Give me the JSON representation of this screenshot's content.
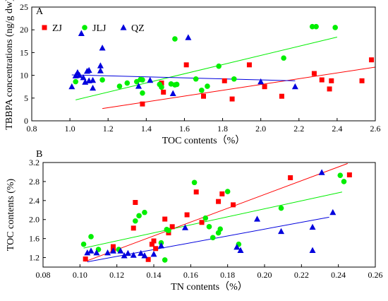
{
  "chart_data": [
    {
      "type": "scatter",
      "panel_label": "A",
      "xlabel": "TOC contents（%）",
      "ylabel": "TBBPA concentrations (ng/g dw)",
      "xlim": [
        0.8,
        2.6
      ],
      "ylim": [
        0,
        25
      ],
      "xticks": [
        "0.8",
        "1.0",
        "1.2",
        "1.4",
        "1.6",
        "1.8",
        "2.0",
        "2.2",
        "2.4",
        "2.6"
      ],
      "yticks": [
        "0",
        "5",
        "10",
        "15",
        "20",
        "25"
      ],
      "legend_position": "top-left",
      "series": [
        {
          "name": "ZJ",
          "marker": "square",
          "color": "#ff0000",
          "points": [
            [
              1.38,
              3.7
            ],
            [
              1.49,
              6.3
            ],
            [
              1.48,
              8.3
            ],
            [
              1.61,
              12.3
            ],
            [
              1.7,
              5.4
            ],
            [
              1.81,
              8.8
            ],
            [
              1.85,
              4.8
            ],
            [
              1.94,
              12.3
            ],
            [
              2.02,
              7.5
            ],
            [
              2.11,
              5.4
            ],
            [
              2.28,
              10.4
            ],
            [
              2.32,
              9.0
            ],
            [
              2.36,
              7.0
            ],
            [
              2.37,
              8.8
            ],
            [
              2.53,
              8.8
            ],
            [
              2.58,
              13.4
            ]
          ],
          "trend": [
            [
              1.17,
              2.7
            ],
            [
              2.6,
              11.8
            ]
          ]
        },
        {
          "name": "JLJ",
          "marker": "circle",
          "color": "#00ee00",
          "points": [
            [
              1.03,
              8.6
            ],
            [
              1.17,
              9.0
            ],
            [
              1.26,
              7.6
            ],
            [
              1.3,
              8.3
            ],
            [
              1.35,
              8.6
            ],
            [
              1.37,
              9.1
            ],
            [
              1.38,
              6.1
            ],
            [
              1.38,
              9.0
            ],
            [
              1.47,
              8.0
            ],
            [
              1.48,
              7.4
            ],
            [
              1.53,
              8.1
            ],
            [
              1.55,
              7.9
            ],
            [
              1.55,
              18.0
            ],
            [
              1.56,
              8.0
            ],
            [
              1.66,
              9.2
            ],
            [
              1.69,
              6.7
            ],
            [
              1.72,
              7.6
            ],
            [
              1.78,
              12.0
            ],
            [
              1.86,
              9.2
            ],
            [
              2.12,
              13.8
            ],
            [
              2.27,
              20.7
            ],
            [
              2.29,
              20.7
            ],
            [
              2.39,
              20.5
            ]
          ],
          "trend": [
            [
              1.03,
              4.6
            ],
            [
              2.4,
              18.4
            ]
          ]
        },
        {
          "name": "QZ",
          "marker": "triangle",
          "color": "#0000dd",
          "points": [
            [
              1.01,
              7.5
            ],
            [
              1.03,
              9.9
            ],
            [
              1.04,
              10.6
            ],
            [
              1.05,
              10.0
            ],
            [
              1.06,
              19.2
            ],
            [
              1.07,
              9.5
            ],
            [
              1.08,
              8.5
            ],
            [
              1.09,
              10.9
            ],
            [
              1.1,
              11.1
            ],
            [
              1.1,
              8.8
            ],
            [
              1.12,
              7.2
            ],
            [
              1.12,
              8.9
            ],
            [
              1.16,
              11.0
            ],
            [
              1.16,
              12.1
            ],
            [
              1.17,
              16.0
            ],
            [
              1.36,
              7.6
            ],
            [
              1.42,
              8.9
            ],
            [
              1.54,
              6.0
            ],
            [
              1.62,
              18.3
            ],
            [
              2.0,
              8.6
            ],
            [
              2.18,
              7.5
            ]
          ],
          "trend": [
            [
              1.01,
              10.1
            ],
            [
              2.18,
              8.8
            ]
          ]
        }
      ]
    },
    {
      "type": "scatter",
      "panel_label": "B",
      "xlabel": "TN contents（%）",
      "ylabel": "TOC contents (%)",
      "xlim": [
        0.08,
        0.26
      ],
      "ylim": [
        1.0,
        3.2
      ],
      "xticks": [
        "0.08",
        "0.10",
        "0.12",
        "0.14",
        "0.16",
        "0.18",
        "0.20",
        "0.22",
        "0.24",
        "0.26"
      ],
      "yticks": [
        "1.2",
        "1.6",
        "2.0",
        "2.4",
        "2.8",
        "3.2"
      ],
      "series": [
        {
          "name": "ZJ",
          "marker": "square",
          "color": "#ff0000",
          "points": [
            [
              0.103,
              1.17
            ],
            [
              0.118,
              1.35
            ],
            [
              0.118,
              1.43
            ],
            [
              0.129,
              1.82
            ],
            [
              0.13,
              2.36
            ],
            [
              0.137,
              1.16
            ],
            [
              0.139,
              1.48
            ],
            [
              0.14,
              1.55
            ],
            [
              0.141,
              1.39
            ],
            [
              0.146,
              2.01
            ],
            [
              0.148,
              1.72
            ],
            [
              0.15,
              1.85
            ],
            [
              0.158,
              2.1
            ],
            [
              0.163,
              2.58
            ],
            [
              0.166,
              1.94
            ],
            [
              0.175,
              2.38
            ],
            [
              0.177,
              2.54
            ],
            [
              0.183,
              2.31
            ],
            [
              0.214,
              2.88
            ],
            [
              0.246,
              2.94
            ]
          ],
          "trend": [
            [
              0.103,
              1.12
            ],
            [
              0.245,
              3.18
            ]
          ]
        },
        {
          "name": "JLJ",
          "marker": "circle",
          "color": "#00ee00",
          "points": [
            [
              0.102,
              1.48
            ],
            [
              0.106,
              1.64
            ],
            [
              0.11,
              1.37
            ],
            [
              0.121,
              1.37
            ],
            [
              0.13,
              1.97
            ],
            [
              0.132,
              2.08
            ],
            [
              0.135,
              2.15
            ],
            [
              0.144,
              1.51
            ],
            [
              0.146,
              1.15
            ],
            [
              0.147,
              1.79
            ],
            [
              0.148,
              1.77
            ],
            [
              0.162,
              2.78
            ],
            [
              0.168,
              2.03
            ],
            [
              0.17,
              1.85
            ],
            [
              0.172,
              1.62
            ],
            [
              0.175,
              1.72
            ],
            [
              0.176,
              1.8
            ],
            [
              0.18,
              2.59
            ],
            [
              0.186,
              1.48
            ],
            [
              0.209,
              2.24
            ],
            [
              0.241,
              2.93
            ],
            [
              0.243,
              2.8
            ]
          ],
          "trend": [
            [
              0.102,
              1.4
            ],
            [
              0.242,
              2.58
            ]
          ]
        },
        {
          "name": "QZ",
          "marker": "triangle",
          "color": "#0000dd",
          "points": [
            [
              0.104,
              1.3
            ],
            [
              0.106,
              1.34
            ],
            [
              0.109,
              1.3
            ],
            [
              0.115,
              1.3
            ],
            [
              0.118,
              1.34
            ],
            [
              0.122,
              1.34
            ],
            [
              0.124,
              1.24
            ],
            [
              0.126,
              1.29
            ],
            [
              0.129,
              1.25
            ],
            [
              0.133,
              1.29
            ],
            [
              0.135,
              1.24
            ],
            [
              0.14,
              1.27
            ],
            [
              0.144,
              1.45
            ],
            [
              0.157,
              1.83
            ],
            [
              0.185,
              1.42
            ],
            [
              0.187,
              1.35
            ],
            [
              0.196,
              2.01
            ],
            [
              0.209,
              1.75
            ],
            [
              0.226,
              1.84
            ],
            [
              0.226,
              1.35
            ],
            [
              0.231,
              2.99
            ],
            [
              0.237,
              2.15
            ]
          ],
          "trend": [
            [
              0.104,
              1.11
            ],
            [
              0.235,
              2.05
            ]
          ]
        }
      ]
    }
  ]
}
